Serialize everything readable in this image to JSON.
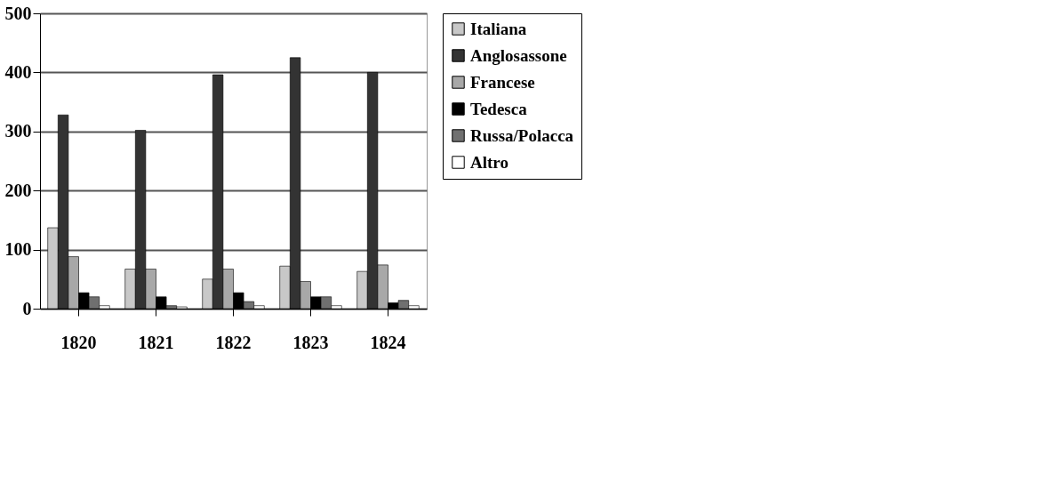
{
  "chart_data": {
    "type": "bar",
    "categories": [
      "1820",
      "1821",
      "1822",
      "1823",
      "1824"
    ],
    "series": [
      {
        "name": "Italiana",
        "color": "#c8c8c8",
        "values": [
          137,
          67,
          50,
          72,
          63
        ]
      },
      {
        "name": "Anglosassone",
        "color": "#333333",
        "values": [
          328,
          302,
          396,
          425,
          400
        ]
      },
      {
        "name": "Francese",
        "color": "#a8a8a8",
        "values": [
          88,
          67,
          67,
          46,
          74
        ]
      },
      {
        "name": "Tedesca",
        "color": "#000000",
        "values": [
          27,
          20,
          27,
          20,
          10
        ]
      },
      {
        "name": "Russa/Polacca",
        "color": "#707070",
        "values": [
          20,
          5,
          12,
          20,
          14
        ]
      },
      {
        "name": "Altro",
        "color": "#ffffff",
        "values": [
          5,
          3,
          5,
          5,
          5
        ]
      }
    ],
    "ylim": [
      0,
      500
    ],
    "yticks": [
      0,
      100,
      200,
      300,
      400,
      500
    ],
    "grid": "y",
    "legend": "right"
  }
}
